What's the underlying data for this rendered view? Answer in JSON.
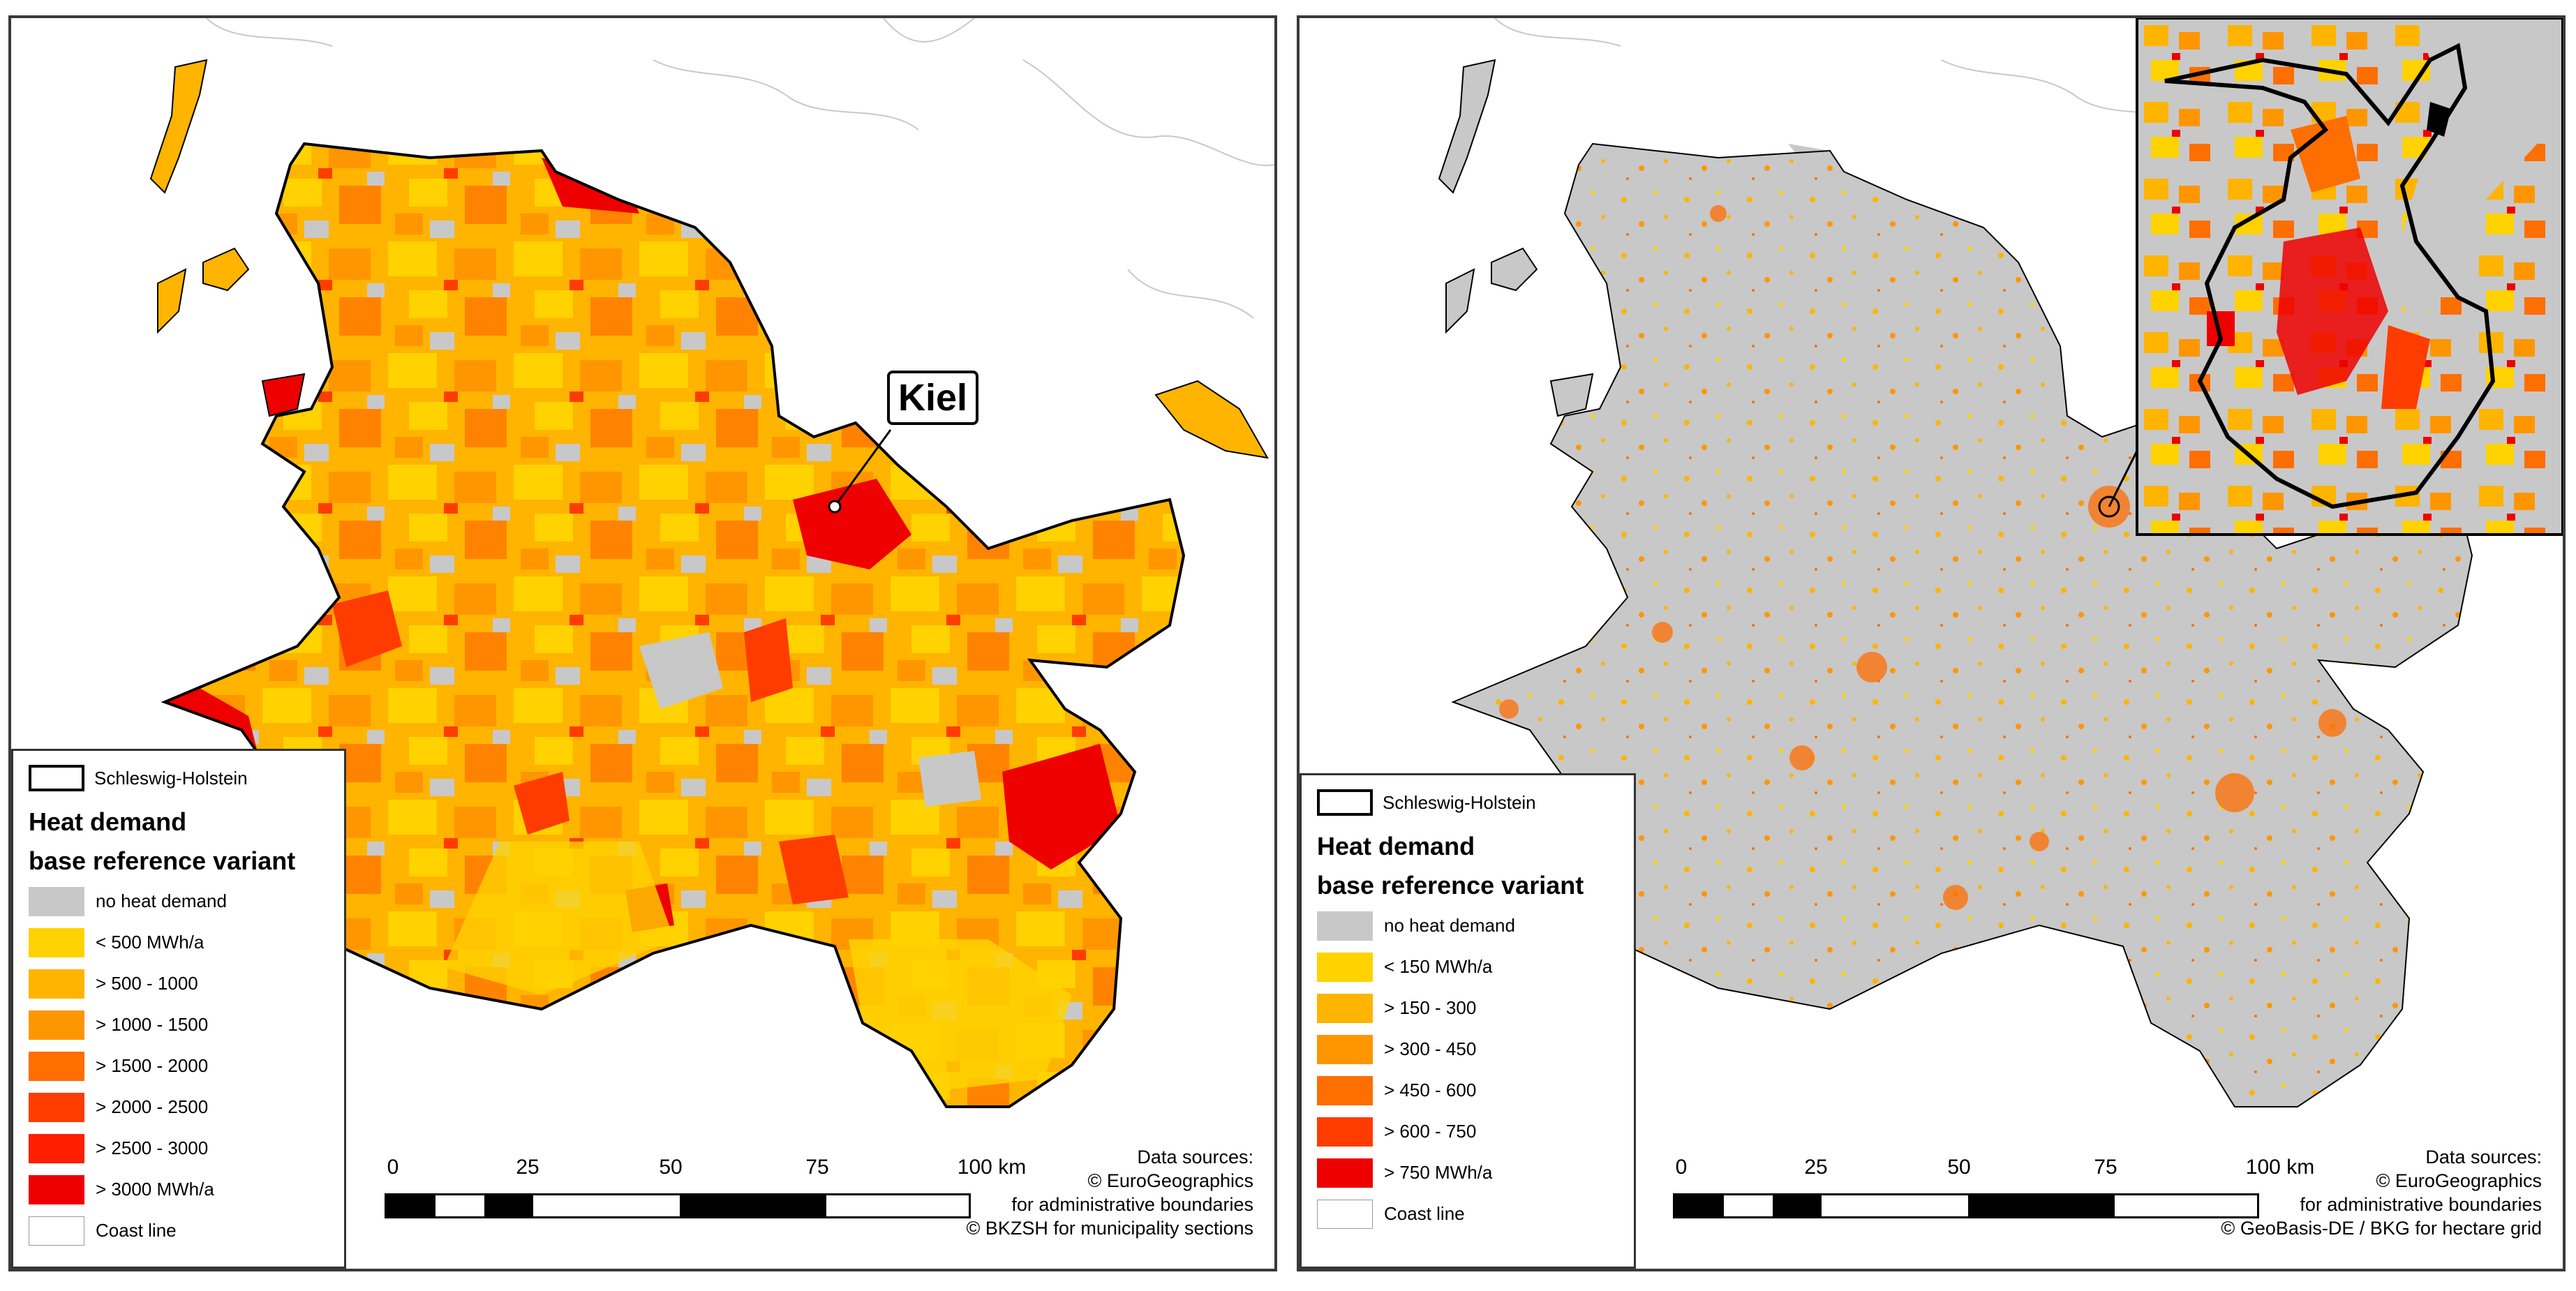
{
  "colors": {
    "no_heat": "#c8c8c8",
    "class1": "#ffd200",
    "class2": "#ffb400",
    "class3": "#ff9600",
    "class4": "#ff6e00",
    "class5": "#ff3c00",
    "class6": "#ee0000",
    "boundary": "#000000",
    "coast": "#bdbdbd"
  },
  "left_map": {
    "city_label": "Kiel",
    "legend": {
      "boundary_label": "Schleswig-Holstein",
      "title_line1": "Heat demand",
      "title_line2": "base reference variant",
      "items": [
        {
          "label": "no heat demand",
          "color": "#c8c8c8"
        },
        {
          "label": "< 500 MWh/a",
          "color": "#ffd200"
        },
        {
          "label": "> 500 - 1000",
          "color": "#ffb400"
        },
        {
          "label": "> 1000 - 1500",
          "color": "#ff9600"
        },
        {
          "label": "> 1500 - 2000",
          "color": "#ff6e00"
        },
        {
          "label": "> 2000 - 2500",
          "color": "#ff3c00"
        },
        {
          "label": "> 2500 - 3000",
          "color": "#ff1e00"
        },
        {
          "label": "> 3000 MWh/a",
          "color": "#ee0000"
        }
      ],
      "coast_label": "Coast line"
    },
    "scale": {
      "ticks": [
        "0",
        "25",
        "50",
        "75",
        "100 km"
      ]
    },
    "sources": [
      "Data sources:",
      "© EuroGeographics",
      "for administrative boundaries",
      "© BKZSH  for municipality sections"
    ]
  },
  "right_map": {
    "legend": {
      "boundary_label": "Schleswig-Holstein",
      "title_line1": "Heat demand",
      "title_line2": "base reference variant",
      "items": [
        {
          "label": "no heat demand",
          "color": "#c8c8c8"
        },
        {
          "label": "< 150 MWh/a",
          "color": "#ffd200"
        },
        {
          "label": "> 150 - 300",
          "color": "#ffb400"
        },
        {
          "label": "> 300 - 450",
          "color": "#ff9600"
        },
        {
          "label": "> 450 - 600",
          "color": "#ff6e00"
        },
        {
          "label": "> 600 - 750",
          "color": "#ff3c00"
        },
        {
          "label": "> 750 MWh/a",
          "color": "#ee0000"
        }
      ],
      "coast_label": "Coast line"
    },
    "scale": {
      "ticks": [
        "0",
        "25",
        "50",
        "75",
        "100 km"
      ]
    },
    "sources": [
      "Data sources:",
      "© EuroGeographics",
      "for administrative boundaries",
      "© GeoBasis-DE / BKG for hectare grid"
    ]
  }
}
